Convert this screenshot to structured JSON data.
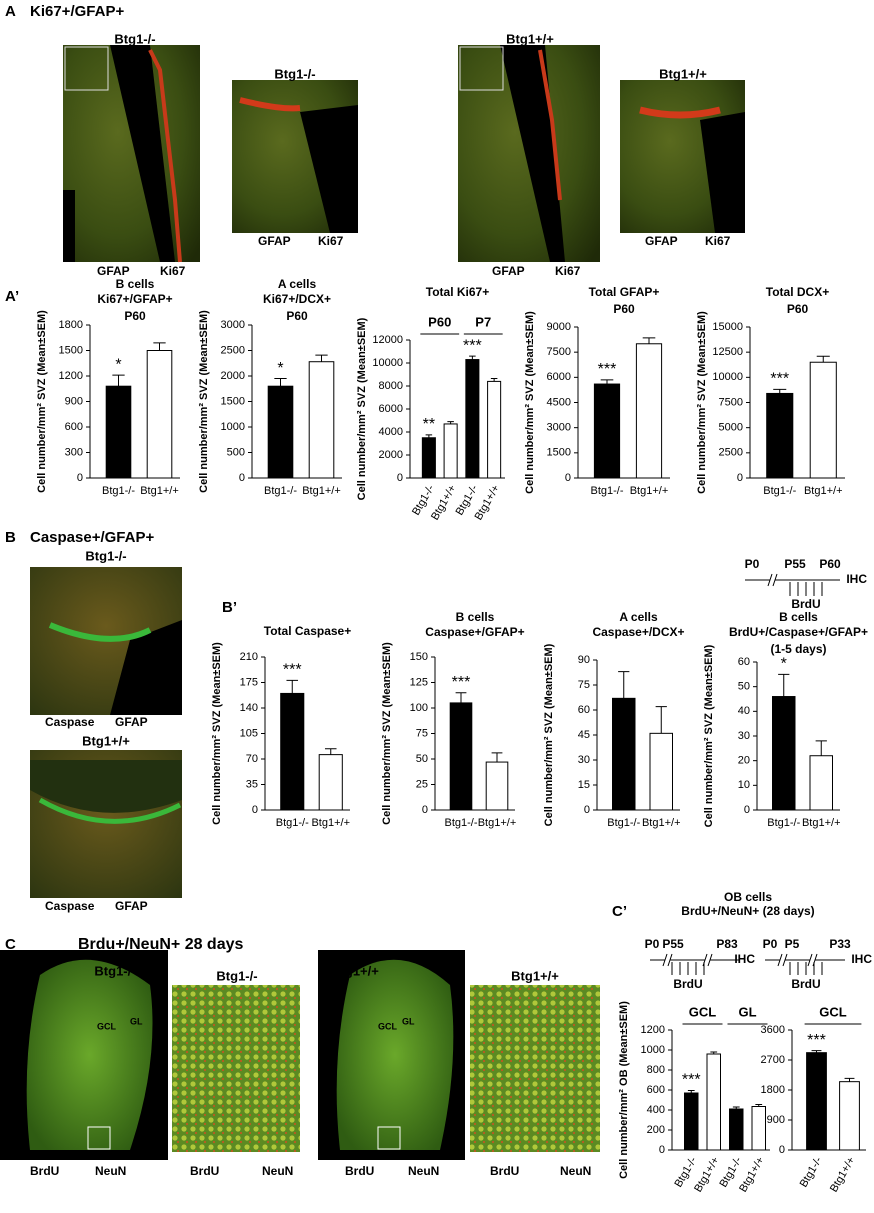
{
  "panel_a": {
    "letter": "A",
    "title": "Ki67+/GFAP+",
    "images": [
      {
        "genotype": "Btg1-/-",
        "stains": [
          "GFAP",
          "Ki67"
        ]
      },
      {
        "genotype": "Btg1-/-",
        "stains": [
          "GFAP",
          "Ki67"
        ]
      },
      {
        "genotype": "Btg1+/+",
        "stains": [
          "GFAP",
          "Ki67"
        ]
      },
      {
        "genotype": "Btg1+/+",
        "stains": [
          "GFAP",
          "Ki67"
        ]
      }
    ]
  },
  "panel_a_prime": {
    "letter": "A’"
  },
  "panel_b": {
    "letter": "B",
    "title": "Caspase+/GFAP+",
    "images": [
      {
        "genotype": "Btg1-/-",
        "stains": [
          "Caspase",
          "GFAP"
        ]
      },
      {
        "genotype": "Btg1+/+",
        "stains": [
          "Caspase",
          "GFAP"
        ]
      }
    ]
  },
  "panel_b_prime": {
    "letter": "B’",
    "timeline": {
      "points": [
        "P0",
        "P55",
        "P60"
      ],
      "end": "IHC",
      "pulse": "BrdU"
    }
  },
  "panel_c": {
    "letter": "C",
    "title": "Brdu+/NeuN+ 28 days",
    "images": [
      {
        "genotype": "Btg1-/-",
        "regions": [
          "GCL",
          "GL"
        ],
        "stains": [
          "BrdU",
          "NeuN"
        ]
      },
      {
        "genotype": "Btg1-/-",
        "stains": [
          "BrdU",
          "NeuN"
        ]
      },
      {
        "genotype": "Btg1+/+",
        "regions": [
          "GCL",
          "GL"
        ],
        "stains": [
          "BrdU",
          "NeuN"
        ]
      },
      {
        "genotype": "Btg1+/+",
        "stains": [
          "BrdU",
          "NeuN"
        ]
      }
    ]
  },
  "panel_c_prime": {
    "letter": "C’",
    "title": [
      "OB cells",
      "BrdU+/NeuN+ (28 days)"
    ],
    "timelines": [
      {
        "points": [
          "P0",
          "P55",
          "P83"
        ],
        "end": "IHC",
        "pulse": "BrdU"
      },
      {
        "points": [
          "P0",
          "P5",
          "P33"
        ],
        "end": "IHC",
        "pulse": "BrdU"
      }
    ]
  },
  "chart_data": [
    {
      "type": "bar",
      "title": [
        "B cells",
        "Ki67+/GFAP+"
      ],
      "subtitle": "P60",
      "ylabel": "Cell number/mm² SVZ (Mean±SEM)",
      "categories": [
        "Btg1-/-",
        "Btg1+/+"
      ],
      "values": [
        1080,
        1500
      ],
      "errors": [
        130,
        90
      ],
      "colors": [
        "#000000",
        "#ffffff"
      ],
      "ylim": [
        0,
        1800
      ],
      "yticks": [
        0,
        300,
        600,
        900,
        1200,
        1500,
        1800
      ],
      "annotations": [
        {
          "text": "*",
          "bar": 0
        }
      ]
    },
    {
      "type": "bar",
      "title": [
        "A cells",
        "Ki67+/DCX+"
      ],
      "subtitle": "P60",
      "ylabel": "Cell number/mm² SVZ (Mean±SEM)",
      "categories": [
        "Btg1-/-",
        "Btg1+/+"
      ],
      "values": [
        1800,
        2280
      ],
      "errors": [
        150,
        130
      ],
      "colors": [
        "#000000",
        "#ffffff"
      ],
      "ylim": [
        0,
        3000
      ],
      "yticks": [
        0,
        500,
        1000,
        1500,
        2000,
        2500,
        3000
      ],
      "annotations": [
        {
          "text": "*",
          "bar": 0
        }
      ]
    },
    {
      "type": "bar",
      "title": [
        "Total Ki67+"
      ],
      "ylabel": "Cell number/mm² SVZ (Mean±SEM)",
      "groups": [
        "P60",
        "P7"
      ],
      "categories": [
        "Btg1-/-",
        "Btg1+/+",
        "Btg1-/-",
        "Btg1+/+"
      ],
      "values": [
        3500,
        4700,
        10300,
        8400
      ],
      "errors": [
        250,
        200,
        300,
        250
      ],
      "colors": [
        "#000000",
        "#ffffff",
        "#000000",
        "#ffffff"
      ],
      "rotated_labels": true,
      "ylim": [
        0,
        12000
      ],
      "yticks": [
        0,
        2000,
        4000,
        6000,
        8000,
        10000,
        12000
      ],
      "annotations": [
        {
          "text": "**",
          "bar": 0
        },
        {
          "text": "***",
          "bar": 2
        }
      ]
    },
    {
      "type": "bar",
      "title": [
        "Total GFAP+"
      ],
      "subtitle": "P60",
      "ylabel": "Cell number/mm² SVZ (Mean±SEM)",
      "categories": [
        "Btg1-/-",
        "Btg1+/+"
      ],
      "values": [
        5600,
        8000
      ],
      "errors": [
        250,
        350
      ],
      "colors": [
        "#000000",
        "#ffffff"
      ],
      "ylim": [
        0,
        9000
      ],
      "yticks": [
        0,
        1500,
        3000,
        4500,
        6000,
        7500,
        9000
      ],
      "annotations": [
        {
          "text": "***",
          "bar": 0
        }
      ]
    },
    {
      "type": "bar",
      "title": [
        "Total DCX+"
      ],
      "subtitle": "P60",
      "ylabel": "Cell number/mm² SVZ (Mean±SEM)",
      "categories": [
        "Btg1-/-",
        "Btg1+/+"
      ],
      "values": [
        8400,
        11500
      ],
      "errors": [
        400,
        600
      ],
      "colors": [
        "#000000",
        "#ffffff"
      ],
      "ylim": [
        0,
        15000
      ],
      "yticks": [
        0,
        2500,
        5000,
        7500,
        10000,
        12500,
        15000
      ],
      "annotations": [
        {
          "text": "***",
          "bar": 0
        }
      ]
    },
    {
      "type": "bar",
      "title": [
        "Total Caspase+"
      ],
      "ylabel": "Cell number/mm² SVZ (Mean±SEM)",
      "categories": [
        "Btg1-/-",
        "Btg1+/+"
      ],
      "values": [
        160,
        76
      ],
      "errors": [
        18,
        8
      ],
      "colors": [
        "#000000",
        "#ffffff"
      ],
      "ylim": [
        0,
        210
      ],
      "yticks": [
        0,
        35,
        70,
        105,
        140,
        175,
        210
      ],
      "annotations": [
        {
          "text": "***",
          "bar": 0
        }
      ]
    },
    {
      "type": "bar",
      "title": [
        "B cells",
        "Caspase+/GFAP+"
      ],
      "ylabel": "Cell number/mm² SVZ (Mean±SEM)",
      "categories": [
        "Btg1-/-",
        "Btg1+/+"
      ],
      "values": [
        105,
        47
      ],
      "errors": [
        10,
        9
      ],
      "colors": [
        "#000000",
        "#ffffff"
      ],
      "ylim": [
        0,
        150
      ],
      "yticks": [
        0,
        25,
        50,
        75,
        100,
        125,
        150
      ],
      "annotations": [
        {
          "text": "***",
          "bar": 0
        }
      ]
    },
    {
      "type": "bar",
      "title": [
        "A cells",
        "Caspase+/DCX+"
      ],
      "ylabel": "Cell number/mm² SVZ (Mean±SEM)",
      "categories": [
        "Btg1-/-",
        "Btg1+/+"
      ],
      "values": [
        67,
        46
      ],
      "errors": [
        16,
        16
      ],
      "colors": [
        "#000000",
        "#ffffff"
      ],
      "ylim": [
        0,
        90
      ],
      "yticks": [
        0,
        15,
        30,
        45,
        60,
        75,
        90
      ]
    },
    {
      "type": "bar",
      "title": [
        "B cells",
        "BrdU+/Caspase+/GFAP+"
      ],
      "subtitle": "(1-5 days)",
      "ylabel": "Cell number/mm² SVZ (Mean±SEM)",
      "categories": [
        "Btg1-/-",
        "Btg1+/+"
      ],
      "values": [
        46,
        22
      ],
      "errors": [
        9,
        6
      ],
      "colors": [
        "#000000",
        "#ffffff"
      ],
      "ylim": [
        0,
        60
      ],
      "yticks": [
        0,
        10,
        20,
        30,
        40,
        50,
        60
      ],
      "annotations": [
        {
          "text": "*",
          "bar": 0
        }
      ]
    },
    {
      "type": "bar",
      "ylabel": "Cell number/mm² OB (Mean±SEM)",
      "groups": [
        "GCL",
        "GL"
      ],
      "categories": [
        "Btg1-/-",
        "Btg1+/+",
        "Btg1-/-",
        "Btg1+/+"
      ],
      "values": [
        570,
        960,
        410,
        435
      ],
      "errors": [
        25,
        20,
        20,
        20
      ],
      "colors": [
        "#000000",
        "#ffffff",
        "#000000",
        "#ffffff"
      ],
      "rotated_labels": true,
      "ylim": [
        0,
        1200
      ],
      "yticks": [
        0,
        200,
        400,
        600,
        800,
        1000,
        1200
      ],
      "annotations": [
        {
          "text": "***",
          "bar": 0
        }
      ]
    },
    {
      "type": "bar",
      "groups": [
        "GCL"
      ],
      "categories": [
        "Btg1-/-",
        "Btg1+/+"
      ],
      "values": [
        2920,
        2050
      ],
      "errors": [
        60,
        100
      ],
      "colors": [
        "#000000",
        "#ffffff"
      ],
      "rotated_labels": true,
      "ylim": [
        0,
        3600
      ],
      "yticks": [
        0,
        900,
        1800,
        2700,
        3600
      ],
      "annotations": [
        {
          "text": "***",
          "bar": 0
        }
      ]
    }
  ]
}
